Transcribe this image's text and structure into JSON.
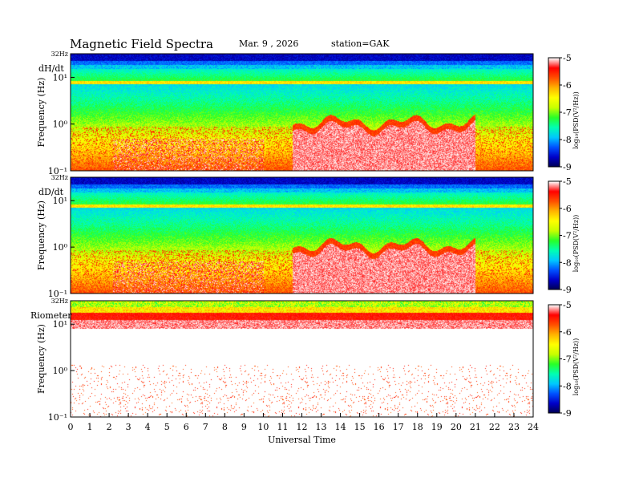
{
  "header": {
    "title": "Magnetic  Field  Spectra",
    "date": "Mar. 9  , 2026",
    "station": "station=GAK"
  },
  "colors": {
    "colormap": [
      "#000050",
      "#0000c8",
      "#0050ff",
      "#00c8ff",
      "#00ffb4",
      "#28ff28",
      "#c8ff00",
      "#ffff00",
      "#ffb400",
      "#ff5000",
      "#ff0000",
      "#ffffff"
    ]
  },
  "chart_data": [
    {
      "type": "heatmap",
      "panel_label": "dH/dt",
      "ylabel": "Frequency  (Hz)",
      "y_top_label": "32Hz",
      "yticks": [
        "10¹",
        "10⁰",
        "10⁻¹"
      ],
      "log_scale_y": true,
      "x_range_hours": [
        0,
        24
      ],
      "colorbar": {
        "ticks": [
          "-5",
          "-6",
          "-7",
          "-8",
          "-9"
        ],
        "label": "log₁₀(PSD(V²/Hz))",
        "range": [
          -9,
          -5
        ]
      },
      "low_band_quiet_intervals_h": [
        [
          11.5,
          21.0
        ]
      ],
      "line_frequency_hz": 8
    },
    {
      "type": "heatmap",
      "panel_label": "dD/dt",
      "ylabel": "Frequency  (Hz)",
      "y_top_label": "32Hz",
      "yticks": [
        "10¹",
        "10⁰",
        "10⁻¹"
      ],
      "log_scale_y": true,
      "x_range_hours": [
        0,
        24
      ],
      "colorbar": {
        "ticks": [
          "-5",
          "-6",
          "-7",
          "-8",
          "-9"
        ],
        "label": "log₁₀(PSD(V²/Hz))",
        "range": [
          -9,
          -5
        ]
      },
      "low_band_quiet_intervals_h": [
        [
          11.5,
          21.0
        ]
      ],
      "line_frequency_hz": 8
    },
    {
      "type": "heatmap",
      "panel_label": "Riometer",
      "ylabel": "Frequency  (Hz)",
      "y_top_label": "32Hz",
      "yticks": [
        "10¹",
        "10⁰",
        "10⁻¹"
      ],
      "log_scale_y": true,
      "x_range_hours": [
        0,
        24
      ],
      "colorbar": {
        "ticks": [
          "-5",
          "-6",
          "-7",
          "-8",
          "-9"
        ],
        "label": "log₁₀(PSD(V²/Hz))",
        "range": [
          -9,
          -5
        ]
      }
    }
  ],
  "xaxis": {
    "label": "Universal  Time",
    "ticks": [
      "0",
      "1",
      "2",
      "3",
      "4",
      "5",
      "6",
      "7",
      "8",
      "9",
      "10",
      "11",
      "12",
      "13",
      "14",
      "15",
      "16",
      "17",
      "18",
      "19",
      "20",
      "21",
      "22",
      "23",
      "24"
    ]
  }
}
